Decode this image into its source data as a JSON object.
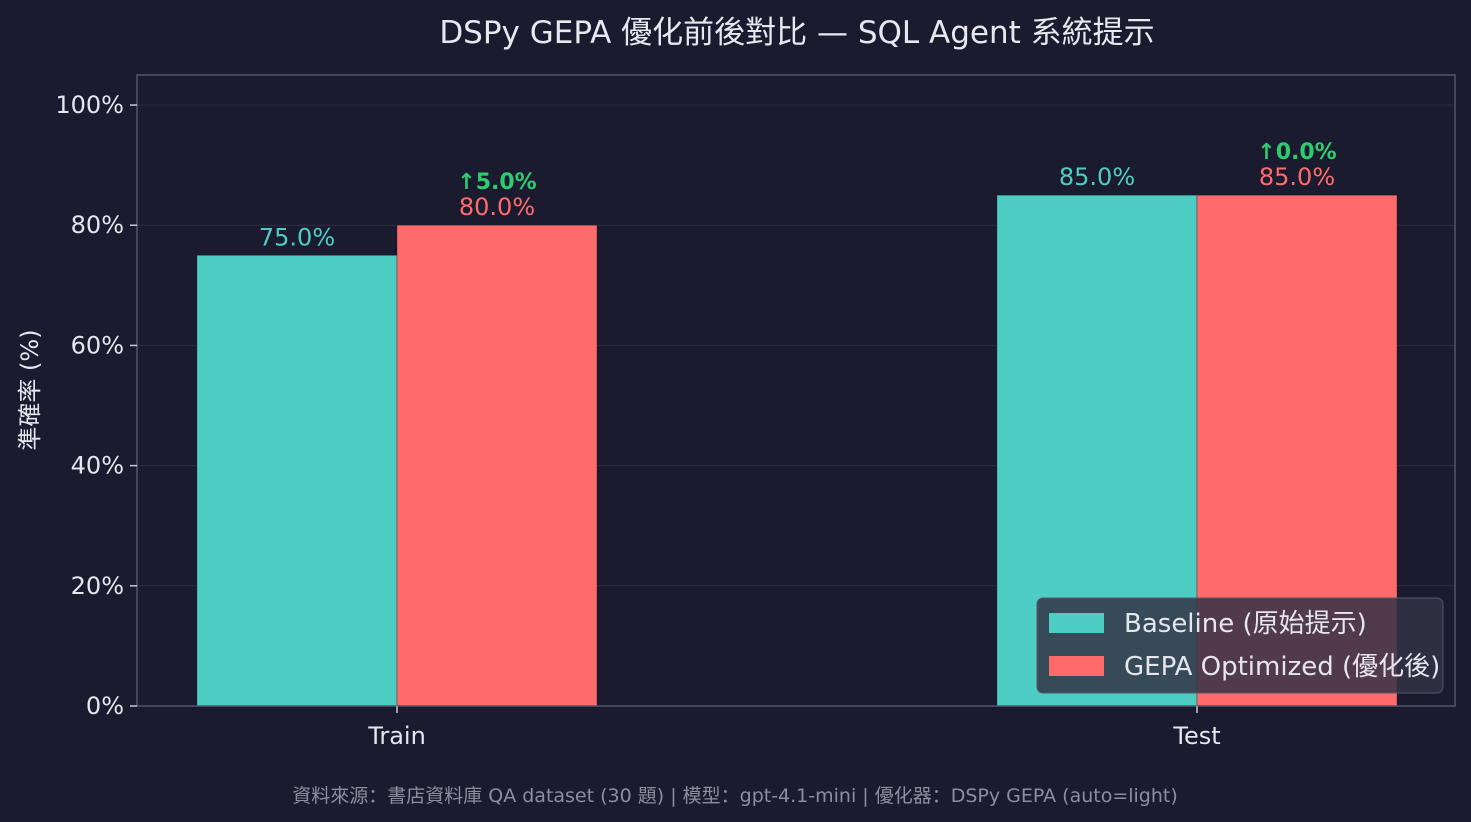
{
  "chart_data": {
    "type": "bar",
    "title": "DSPy GEPA 優化前後對比 — SQL Agent 系統提示",
    "xlabel": "",
    "ylabel": "準確率 (%)",
    "categories": [
      "Train",
      "Test"
    ],
    "ylim": [
      0,
      105
    ],
    "yticks": [
      0,
      20,
      40,
      60,
      80,
      100
    ],
    "ytick_labels": [
      "0%",
      "20%",
      "40%",
      "60%",
      "80%",
      "100%"
    ],
    "grid": true,
    "legend_position": "bottom-right",
    "series": [
      {
        "name": "Baseline (原始提示)",
        "color": "#4ecdc4",
        "values": [
          75.0,
          85.0
        ],
        "value_labels": [
          "75.0%",
          "85.0%"
        ]
      },
      {
        "name": "GEPA Optimized (優化後)",
        "color": "#ff6b6b",
        "values": [
          80.0,
          85.0
        ],
        "value_labels": [
          "80.0%",
          "85.0%"
        ]
      }
    ],
    "annotations": [
      {
        "category": "Train",
        "text": "↑5.0%",
        "color": "#2ecc71"
      },
      {
        "category": "Test",
        "text": "↑0.0%",
        "color": "#2ecc71"
      }
    ],
    "footnote": "資料來源：書店資料庫 QA dataset (30 題) | 模型：gpt-4.1-mini | 優化器：DSPy GEPA (auto=light)"
  },
  "colors": {
    "background": "#1b1b2f",
    "plot_background": "#1b1b2f",
    "frame": "#55556a",
    "grid": "#2c2c44",
    "text": "#e6e6ee",
    "footnote": "#8d8d9e",
    "legend_background": "#323245"
  }
}
